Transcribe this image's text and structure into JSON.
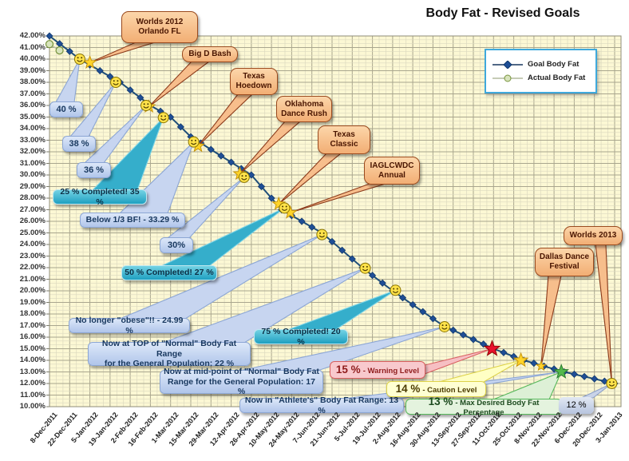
{
  "title": "Body Fat - Revised Goals",
  "legend": {
    "entries": [
      {
        "label": "Goal Body Fat",
        "marker": "blue-diamond"
      },
      {
        "label": "Actual Body Fat",
        "marker": "green-circle"
      }
    ]
  },
  "axes": {
    "y": {
      "min": 10,
      "max": 42,
      "step": 1,
      "suffix": ".00%"
    },
    "x": {
      "tick_labels": [
        "8-Dec-2011",
        "22-Dec-2011",
        "5-Jan-2012",
        "19-Jan-2012",
        "2-Feb-2012",
        "16-Feb-2012",
        "1-Mar-2012",
        "15-Mar-2012",
        "29-Mar-2012",
        "12-Apr-2012",
        "26-Apr-2012",
        "10-May-2012",
        "24-May-2012",
        "7-Jun-2012",
        "21-Jun-2012",
        "5-Jul-2012",
        "19-Jul-2012",
        "2-Aug-2012",
        "16-Aug-2012",
        "30-Aug-2012",
        "13-Sep-2012",
        "27-Sep-2012",
        "11-Oct-2012",
        "25-Oct-2012",
        "8-Nov-2012",
        "22-Nov-2012",
        "6-Dec-2012",
        "20-Dec-2012",
        "3-Jan-2013"
      ]
    }
  },
  "chart_data": {
    "type": "line",
    "title": "Body Fat - Revised Goals",
    "xlabel": "",
    "ylabel": "",
    "ylim": [
      10,
      42
    ],
    "grid": "graph-paper (major + 1/3 minor), pale yellow plot background",
    "legend_position": "inside top-right",
    "series": [
      {
        "name": "Goal Body Fat",
        "color": "#1F4E79",
        "marker": "diamond",
        "points": [
          [
            "2011-12-08",
            42.0
          ],
          [
            "2011-12-15",
            41.33
          ],
          [
            "2011-12-22",
            40.67
          ],
          [
            "2011-12-29",
            40.0
          ],
          [
            "2012-01-05",
            39.5
          ],
          [
            "2012-01-12",
            39.0
          ],
          [
            "2012-01-19",
            38.5
          ],
          [
            "2012-01-26",
            38.0
          ],
          [
            "2012-02-02",
            37.33
          ],
          [
            "2012-02-09",
            36.67
          ],
          [
            "2012-02-16",
            36.0
          ],
          [
            "2012-02-23",
            35.5
          ],
          [
            "2012-03-01",
            35.0
          ],
          [
            "2012-03-08",
            34.15
          ],
          [
            "2012-03-15",
            33.3
          ],
          [
            "2012-03-22",
            32.75
          ],
          [
            "2012-03-29",
            32.2
          ],
          [
            "2012-04-05",
            31.65
          ],
          [
            "2012-04-12",
            31.1
          ],
          [
            "2012-04-19",
            30.55
          ],
          [
            "2012-04-26",
            30.0
          ],
          [
            "2012-05-03",
            29.0
          ],
          [
            "2012-05-10",
            28.0
          ],
          [
            "2012-05-17",
            27.0
          ],
          [
            "2012-05-24",
            26.5
          ],
          [
            "2012-05-31",
            26.0
          ],
          [
            "2012-06-07",
            25.5
          ],
          [
            "2012-06-14",
            25.0
          ],
          [
            "2012-06-21",
            24.25
          ],
          [
            "2012-06-28",
            23.5
          ],
          [
            "2012-07-05",
            22.75
          ],
          [
            "2012-07-12",
            22.0
          ],
          [
            "2012-07-19",
            21.33
          ],
          [
            "2012-07-26",
            20.67
          ],
          [
            "2012-08-02",
            20.0
          ],
          [
            "2012-08-09",
            19.4
          ],
          [
            "2012-08-16",
            18.8
          ],
          [
            "2012-08-23",
            18.2
          ],
          [
            "2012-08-30",
            17.6
          ],
          [
            "2012-09-06",
            17.0
          ],
          [
            "2012-09-13",
            16.6
          ],
          [
            "2012-09-20",
            16.2
          ],
          [
            "2012-09-27",
            15.8
          ],
          [
            "2012-10-04",
            15.4
          ],
          [
            "2012-10-11",
            15.0
          ],
          [
            "2012-10-18",
            14.67
          ],
          [
            "2012-10-25",
            14.33
          ],
          [
            "2012-11-01",
            14.0
          ],
          [
            "2012-11-08",
            13.75
          ],
          [
            "2012-11-15",
            13.5
          ],
          [
            "2012-11-22",
            13.25
          ],
          [
            "2012-11-29",
            13.0
          ],
          [
            "2012-12-06",
            12.8
          ],
          [
            "2012-12-13",
            12.6
          ],
          [
            "2012-12-20",
            12.4
          ],
          [
            "2012-12-27",
            12.2
          ],
          [
            "2013-01-03",
            12.0
          ]
        ]
      },
      {
        "name": "Actual Body Fat",
        "color": "#77933C",
        "marker": "circle",
        "points": [
          [
            "2011-12-08",
            41.3
          ],
          [
            "2011-12-15",
            40.75
          ]
        ]
      }
    ],
    "milestone_smileys": [
      {
        "date": "2011-12-29",
        "value": 40.0
      },
      {
        "date": "2012-01-23",
        "value": 38.0
      },
      {
        "date": "2012-02-13",
        "value": 36.0
      },
      {
        "date": "2012-02-25",
        "value": 34.95
      },
      {
        "date": "2012-03-17",
        "value": 32.85
      },
      {
        "date": "2012-04-21",
        "value": 29.8
      },
      {
        "date": "2012-05-19",
        "value": 27.15
      },
      {
        "date": "2012-06-14",
        "value": 24.85
      },
      {
        "date": "2012-07-14",
        "value": 21.95
      },
      {
        "date": "2012-08-04",
        "value": 20.05
      },
      {
        "date": "2012-09-07",
        "value": 16.9
      },
      {
        "date": "2013-01-01",
        "value": 12.0
      }
    ],
    "event_stars": [
      {
        "date": "2012-01-05",
        "value": 39.7,
        "size": 8
      },
      {
        "date": "2012-02-15",
        "value": 35.9,
        "size": 8
      },
      {
        "date": "2012-03-20",
        "value": 32.5,
        "size": 8
      },
      {
        "date": "2012-04-18",
        "value": 30.1,
        "size": 8
      },
      {
        "date": "2012-05-15",
        "value": 27.5,
        "size": 8
      },
      {
        "date": "2012-05-23",
        "value": 26.75,
        "size": 8
      },
      {
        "date": "2012-11-13",
        "value": 13.5,
        "size": 6
      }
    ],
    "level_stars": [
      {
        "date": "2012-10-10",
        "value": 15.0,
        "marker": "red-star"
      },
      {
        "date": "2012-10-30",
        "value": 14.0,
        "marker": "yellow-star"
      },
      {
        "date": "2012-11-27",
        "value": 13.0,
        "marker": "green-star"
      }
    ]
  },
  "callouts": [
    {
      "id": "worlds2012",
      "style": "event",
      "lines": [
        "Worlds 2012",
        "Orlando FL"
      ],
      "target": {
        "date": "2012-01-05",
        "value": 39.7
      }
    },
    {
      "id": "bigdbash",
      "style": "event",
      "lines": [
        "Big D Bash"
      ],
      "target": {
        "date": "2012-02-15",
        "value": 35.9
      }
    },
    {
      "id": "texashoedown",
      "style": "event",
      "lines": [
        "Texas",
        "Hoedown"
      ],
      "target": {
        "date": "2012-03-20",
        "value": 32.5
      }
    },
    {
      "id": "oklahoma",
      "style": "event",
      "lines": [
        "Oklahoma",
        "Dance Rush"
      ],
      "target": {
        "date": "2012-04-18",
        "value": 30.1
      }
    },
    {
      "id": "texasclassic",
      "style": "event",
      "lines": [
        "Texas",
        "Classic"
      ],
      "target": {
        "date": "2012-05-15",
        "value": 27.5
      }
    },
    {
      "id": "iaglcwdc",
      "style": "event",
      "lines": [
        "IAGLCWDC",
        "Annual"
      ],
      "target": {
        "date": "2012-05-23",
        "value": 26.75
      }
    },
    {
      "id": "dallasdance",
      "style": "event",
      "lines": [
        "Dallas Dance",
        "Festival"
      ],
      "target": {
        "date": "2012-11-13",
        "value": 13.5
      }
    },
    {
      "id": "worlds2013",
      "style": "event",
      "lines": [
        "Worlds 2013"
      ],
      "target": {
        "date": "2013-01-01",
        "value": 12.05
      }
    },
    {
      "id": "b40",
      "style": "percent",
      "lines": [
        "40 %"
      ],
      "target": {
        "date": "2011-12-29",
        "value": 40.0
      }
    },
    {
      "id": "b38",
      "style": "percent",
      "lines": [
        "38 %"
      ],
      "target": {
        "date": "2012-01-23",
        "value": 38.0
      }
    },
    {
      "id": "b36",
      "style": "percent",
      "lines": [
        "36 %"
      ],
      "target": {
        "date": "2012-02-13",
        "value": 36.0
      }
    },
    {
      "id": "c25",
      "style": "teal",
      "lines": [
        "25 % Completed! 35 %"
      ],
      "target": {
        "date": "2012-02-25",
        "value": 34.95
      }
    },
    {
      "id": "b3329",
      "style": "percent",
      "lines": [
        "Below 1/3 BF! - 33.29 %"
      ],
      "target": {
        "date": "2012-03-17",
        "value": 32.85
      }
    },
    {
      "id": "b30",
      "style": "percent",
      "lines": [
        "30%"
      ],
      "target": {
        "date": "2012-04-21",
        "value": 29.8
      }
    },
    {
      "id": "c50",
      "style": "teal",
      "lines": [
        "50 % Completed! 27 %"
      ],
      "target": {
        "date": "2012-05-19",
        "value": 27.15
      }
    },
    {
      "id": "obese",
      "style": "percent",
      "lines": [
        "No longer \"obese\"!! - 24.99 %"
      ],
      "target": {
        "date": "2012-06-14",
        "value": 24.85
      }
    },
    {
      "id": "top22",
      "style": "percent",
      "lines": [
        "Now at TOP of \"Normal\" Body Fat Range",
        "for the General Population:  22 %"
      ],
      "target": {
        "date": "2012-07-14",
        "value": 21.95
      }
    },
    {
      "id": "c75",
      "style": "teal",
      "lines": [
        "75 % Completed! 20 %"
      ],
      "target": {
        "date": "2012-08-04",
        "value": 20.05
      }
    },
    {
      "id": "mid17",
      "style": "percent",
      "lines": [
        "Now at mid-point of \"Normal\" Body Fat",
        "Range for the General Population:  17 %"
      ],
      "target": {
        "date": "2012-09-07",
        "value": 16.9
      }
    },
    {
      "id": "athlete13",
      "style": "percent",
      "lines": [
        "Now in \"Athlete's\" Body Fat Range: 13 %"
      ],
      "target": {
        "date": "2012-11-27",
        "value": 13.0
      }
    },
    {
      "id": "warn15",
      "style": "warn",
      "big": "15 %",
      "small": "- Warning Level",
      "target": {
        "date": "2012-10-10",
        "value": 15.0
      }
    },
    {
      "id": "caution14",
      "style": "caution",
      "big": "14 %",
      "small": "- Caution Level",
      "target": {
        "date": "2012-10-30",
        "value": 14.0
      }
    },
    {
      "id": "green13",
      "style": "green",
      "big": "13 %",
      "small": "- Max Desired Body Fat Percentage",
      "target": {
        "date": "2012-11-27",
        "value": 13.0
      }
    },
    {
      "id": "b12",
      "style": "b12",
      "lines": [
        "12 %"
      ],
      "target": {
        "date": "2013-01-01",
        "value": 12.0
      }
    }
  ]
}
